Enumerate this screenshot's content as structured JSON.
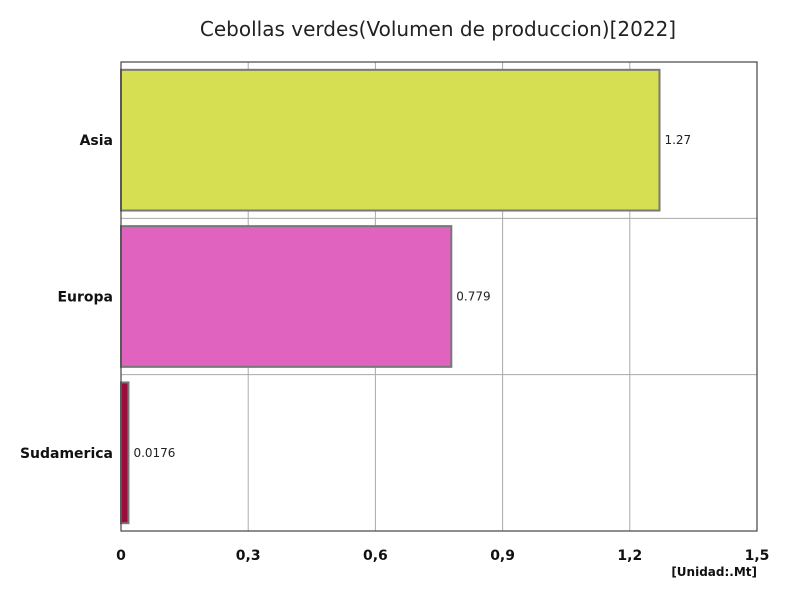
{
  "chart_data": {
    "type": "bar",
    "orientation": "horizontal",
    "title": "Cebollas verdes(Volumen de produccion)[2022]",
    "unit_label": "[Unidad:.Mt]",
    "categories": [
      "Asia",
      "Europa",
      "Sudamerica"
    ],
    "values": [
      1.27,
      0.779,
      0.0176
    ],
    "value_labels": [
      "1.27",
      "0.779",
      "0.0176"
    ],
    "colors": [
      "#d6df52",
      "#e063c0",
      "#9a0b3e"
    ],
    "bar_stroke": "#777777",
    "xlim": [
      0,
      1.5
    ],
    "x_ticks": [
      0,
      0.3,
      0.6,
      0.9,
      1.2,
      1.5
    ],
    "x_tick_labels": [
      "0",
      "0,3",
      "0,6",
      "0,9",
      "1,2",
      "1,5"
    ],
    "grid": true,
    "legend": "none"
  }
}
